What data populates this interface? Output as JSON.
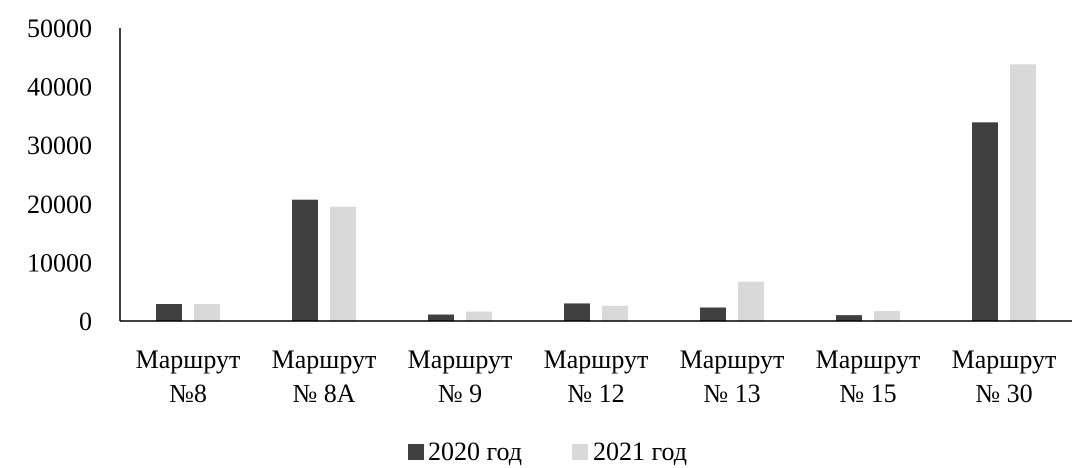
{
  "chart_data": {
    "type": "bar",
    "categories": [
      [
        "Маршрут",
        "№8"
      ],
      [
        "Маршрут",
        "№ 8А"
      ],
      [
        "Маршрут",
        "№ 9"
      ],
      [
        "Маршрут",
        "№ 12"
      ],
      [
        "Маршрут",
        "№ 13"
      ],
      [
        "Маршрут",
        "№ 15"
      ],
      [
        "Маршрут",
        "№ 30"
      ]
    ],
    "series": [
      {
        "name": "2020 год",
        "color": "#404040",
        "values": [
          2900,
          20700,
          1100,
          3000,
          2300,
          1000,
          33900
        ]
      },
      {
        "name": "2021 год",
        "color": "#d9d9d9",
        "values": [
          2900,
          19500,
          1600,
          2600,
          6700,
          1700,
          43800
        ]
      }
    ],
    "yticks": [
      "0",
      "10000",
      "20000",
      "30000",
      "40000",
      "50000"
    ],
    "ylim": [
      0,
      50000
    ],
    "grid": false,
    "legend": "bottom-center"
  }
}
